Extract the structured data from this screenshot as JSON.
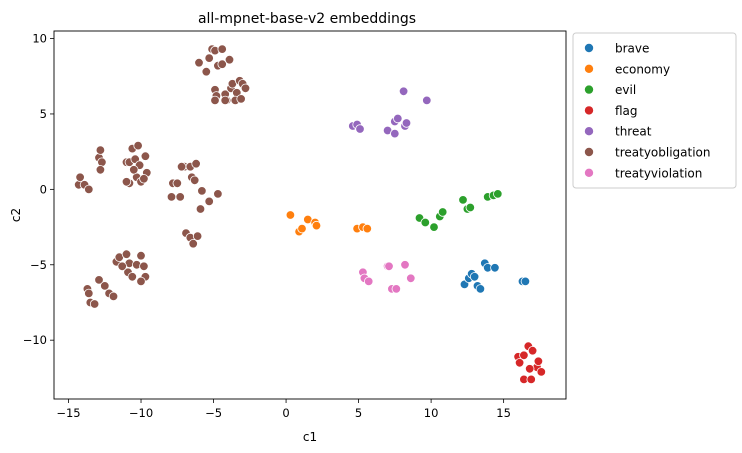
{
  "chart_data": {
    "type": "scatter",
    "title": "all-mpnet-base-v2 embeddings",
    "xlabel": "c1",
    "ylabel": "c2",
    "xlim": [
      -16,
      19.3
    ],
    "ylim": [
      -13.9,
      10.5
    ],
    "xticks": [
      -15,
      -10,
      -5,
      0,
      5,
      10,
      15
    ],
    "yticks": [
      -10,
      -5,
      0,
      5,
      10
    ],
    "grid": false,
    "legend_position": "outside-top-right",
    "series": [
      {
        "name": "brave",
        "color": "#1f77b4",
        "points": [
          [
            12.3,
            -6.3
          ],
          [
            12.6,
            -5.9
          ],
          [
            12.8,
            -5.6
          ],
          [
            13.0,
            -5.8
          ],
          [
            13.2,
            -6.4
          ],
          [
            13.4,
            -6.6
          ],
          [
            13.7,
            -4.9
          ],
          [
            13.9,
            -5.2
          ],
          [
            14.4,
            -5.2
          ],
          [
            16.3,
            -6.1
          ],
          [
            16.5,
            -6.1
          ]
        ]
      },
      {
        "name": "economy",
        "color": "#ff7f0e",
        "points": [
          [
            0.3,
            -1.7
          ],
          [
            0.9,
            -2.8
          ],
          [
            1.1,
            -2.6
          ],
          [
            1.5,
            -2.0
          ],
          [
            2.0,
            -2.2
          ],
          [
            2.1,
            -2.4
          ],
          [
            4.9,
            -2.6
          ],
          [
            5.3,
            -2.5
          ],
          [
            5.6,
            -2.6
          ]
        ]
      },
      {
        "name": "evil",
        "color": "#2ca02c",
        "points": [
          [
            9.2,
            -1.9
          ],
          [
            9.6,
            -2.2
          ],
          [
            10.2,
            -2.5
          ],
          [
            10.6,
            -1.8
          ],
          [
            10.8,
            -1.5
          ],
          [
            12.2,
            -0.7
          ],
          [
            12.5,
            -1.3
          ],
          [
            12.7,
            -1.2
          ],
          [
            13.9,
            -0.5
          ],
          [
            14.3,
            -0.4
          ],
          [
            14.6,
            -0.3
          ]
        ]
      },
      {
        "name": "flag",
        "color": "#d62728",
        "points": [
          [
            16.0,
            -11.1
          ],
          [
            16.4,
            -11.0
          ],
          [
            16.7,
            -10.4
          ],
          [
            17.0,
            -10.7
          ],
          [
            16.4,
            -12.6
          ],
          [
            16.9,
            -12.6
          ],
          [
            17.3,
            -11.8
          ],
          [
            17.6,
            -12.1
          ],
          [
            17.4,
            -11.4
          ],
          [
            16.8,
            -11.9
          ],
          [
            16.1,
            -11.5
          ]
        ]
      },
      {
        "name": "threat",
        "color": "#9467bd",
        "points": [
          [
            4.6,
            4.2
          ],
          [
            4.9,
            4.3
          ],
          [
            5.1,
            4.0
          ],
          [
            7.0,
            3.9
          ],
          [
            7.5,
            3.7
          ],
          [
            7.5,
            4.5
          ],
          [
            7.7,
            4.7
          ],
          [
            8.2,
            4.2
          ],
          [
            8.3,
            4.4
          ],
          [
            8.1,
            6.5
          ],
          [
            9.7,
            5.9
          ]
        ]
      },
      {
        "name": "treatyobligation",
        "color": "#8c564b",
        "points": [
          [
            -14.3,
            0.3
          ],
          [
            -14.2,
            0.8
          ],
          [
            -13.9,
            0.3
          ],
          [
            -13.6,
            0.0
          ],
          [
            -12.9,
            2.1
          ],
          [
            -12.8,
            2.6
          ],
          [
            -12.7,
            1.8
          ],
          [
            -12.8,
            1.3
          ],
          [
            -11.0,
            1.8
          ],
          [
            -10.8,
            1.8
          ],
          [
            -10.6,
            2.7
          ],
          [
            -10.2,
            2.9
          ],
          [
            -10.4,
            2.0
          ],
          [
            -10.1,
            1.6
          ],
          [
            -9.7,
            2.2
          ],
          [
            -9.6,
            1.1
          ],
          [
            -10.3,
            0.8
          ],
          [
            -10.0,
            0.5
          ],
          [
            -10.8,
            0.4
          ],
          [
            -11.0,
            0.5
          ],
          [
            -10.5,
            1.3
          ],
          [
            -9.8,
            0.7
          ],
          [
            -7.8,
            0.4
          ],
          [
            -7.5,
            0.4
          ],
          [
            -7.0,
            1.5
          ],
          [
            -7.2,
            1.5
          ],
          [
            -6.6,
            1.5
          ],
          [
            -6.2,
            1.7
          ],
          [
            -6.5,
            0.8
          ],
          [
            -6.3,
            0.6
          ],
          [
            -5.8,
            -0.1
          ],
          [
            -5.3,
            -0.8
          ],
          [
            -5.9,
            -1.3
          ],
          [
            -4.7,
            -0.3
          ],
          [
            -7.9,
            -0.5
          ],
          [
            -7.3,
            -0.5
          ],
          [
            -6.9,
            -2.9
          ],
          [
            -6.6,
            -3.2
          ],
          [
            -6.4,
            -3.6
          ],
          [
            -6.1,
            -3.1
          ],
          [
            -11.7,
            -4.8
          ],
          [
            -11.5,
            -4.5
          ],
          [
            -11.0,
            -4.3
          ],
          [
            -10.8,
            -4.9
          ],
          [
            -10.3,
            -5.0
          ],
          [
            -10.0,
            -4.4
          ],
          [
            -9.8,
            -5.1
          ],
          [
            -9.7,
            -5.8
          ],
          [
            -10.0,
            -6.1
          ],
          [
            -10.9,
            -5.5
          ],
          [
            -11.3,
            -5.1
          ],
          [
            -10.6,
            -5.8
          ],
          [
            -12.9,
            -6.0
          ],
          [
            -12.5,
            -6.4
          ],
          [
            -12.2,
            -6.9
          ],
          [
            -11.9,
            -7.1
          ],
          [
            -13.7,
            -6.6
          ],
          [
            -13.6,
            -6.9
          ],
          [
            -13.5,
            -7.5
          ],
          [
            -13.2,
            -7.6
          ],
          [
            -5.1,
            9.3
          ],
          [
            -4.9,
            9.2
          ],
          [
            -4.4,
            9.3
          ],
          [
            -4.7,
            8.2
          ],
          [
            -4.4,
            8.3
          ],
          [
            -5.3,
            8.7
          ],
          [
            -5.5,
            7.8
          ],
          [
            -6.0,
            8.4
          ],
          [
            -4.9,
            6.6
          ],
          [
            -4.8,
            6.2
          ],
          [
            -4.9,
            5.9
          ],
          [
            -4.1,
            5.9
          ],
          [
            -4.2,
            6.3
          ],
          [
            -3.8,
            6.7
          ],
          [
            -3.7,
            7.0
          ],
          [
            -3.4,
            6.4
          ],
          [
            -3.5,
            5.9
          ],
          [
            -3.1,
            6.0
          ],
          [
            -3.2,
            7.2
          ],
          [
            -3.0,
            7.0
          ],
          [
            -2.8,
            6.7
          ],
          [
            -3.9,
            8.6
          ],
          [
            -4.2,
            5.9
          ]
        ]
      },
      {
        "name": "treatyviolation",
        "color": "#e377c2",
        "points": [
          [
            5.3,
            -5.5
          ],
          [
            5.4,
            -5.9
          ],
          [
            5.7,
            -6.1
          ],
          [
            7.0,
            -5.1
          ],
          [
            7.1,
            -5.1
          ],
          [
            7.3,
            -6.6
          ],
          [
            7.6,
            -6.6
          ],
          [
            8.2,
            -5.0
          ],
          [
            8.6,
            -5.9
          ]
        ]
      }
    ]
  }
}
